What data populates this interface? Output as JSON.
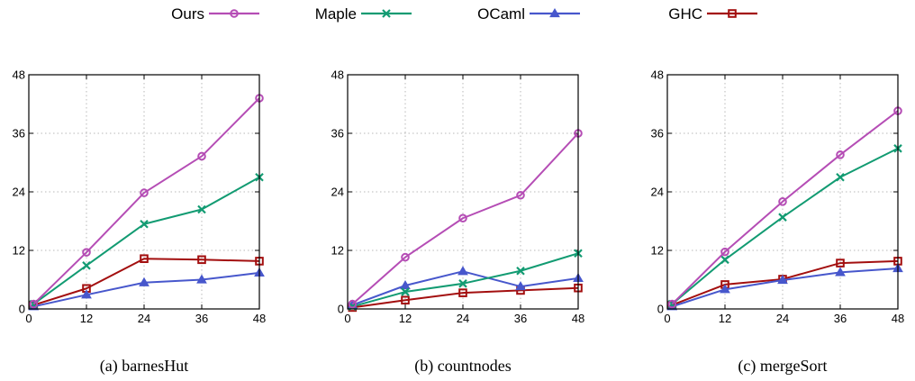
{
  "legend": [
    {
      "name": "Ours",
      "color": "#b54db5",
      "marker": "circle"
    },
    {
      "name": "Maple",
      "color": "#129b72",
      "marker": "x"
    },
    {
      "name": "OCaml",
      "color": "#4757cc",
      "marker": "triangle"
    },
    {
      "name": "GHC",
      "color": "#a30f0f",
      "marker": "square"
    }
  ],
  "chart_data": [
    {
      "type": "line",
      "caption": "(a) barnesHut",
      "x": [
        1,
        12,
        24,
        36,
        48
      ],
      "xticks": [
        0,
        12,
        24,
        36,
        48
      ],
      "yticks": [
        0,
        12,
        24,
        36,
        48
      ],
      "xlim": [
        0,
        48
      ],
      "ylim": [
        0,
        48
      ],
      "grid": true,
      "series": [
        {
          "name": "Ours",
          "values": [
            1,
            11.6,
            23.8,
            31.3,
            43.2
          ]
        },
        {
          "name": "Maple",
          "values": [
            1,
            8.9,
            17.4,
            20.4,
            27
          ]
        },
        {
          "name": "OCaml",
          "values": [
            0.5,
            2.9,
            5.4,
            6,
            7.4
          ]
        },
        {
          "name": "GHC",
          "values": [
            0.8,
            4.2,
            10.3,
            10.1,
            9.8
          ]
        }
      ]
    },
    {
      "type": "line",
      "caption": "(b) countnodes",
      "x": [
        1,
        12,
        24,
        36,
        48
      ],
      "xticks": [
        0,
        12,
        24,
        36,
        48
      ],
      "yticks": [
        0,
        12,
        24,
        36,
        48
      ],
      "xlim": [
        0,
        48
      ],
      "ylim": [
        0,
        48
      ],
      "grid": true,
      "series": [
        {
          "name": "Ours",
          "values": [
            1,
            10.6,
            18.6,
            23.3,
            36
          ]
        },
        {
          "name": "Maple",
          "values": [
            0.5,
            3.5,
            5.2,
            7.8,
            11.4
          ]
        },
        {
          "name": "OCaml",
          "values": [
            0.8,
            4.8,
            7.7,
            4.6,
            6.3
          ]
        },
        {
          "name": "GHC",
          "values": [
            0.3,
            1.8,
            3.3,
            3.8,
            4.3
          ]
        }
      ]
    },
    {
      "type": "line",
      "caption": "(c) mergeSort",
      "x": [
        1,
        12,
        24,
        36,
        48
      ],
      "xticks": [
        0,
        12,
        24,
        36,
        48
      ],
      "yticks": [
        0,
        12,
        24,
        36,
        48
      ],
      "xlim": [
        0,
        48
      ],
      "ylim": [
        0,
        48
      ],
      "grid": true,
      "series": [
        {
          "name": "Ours",
          "values": [
            1,
            11.7,
            22,
            31.6,
            40.6
          ]
        },
        {
          "name": "Maple",
          "values": [
            1,
            10.1,
            18.8,
            27,
            32.9
          ]
        },
        {
          "name": "OCaml",
          "values": [
            0.5,
            4,
            5.9,
            7.5,
            8.3
          ]
        },
        {
          "name": "GHC",
          "values": [
            0.8,
            5,
            6.1,
            9.4,
            9.8
          ]
        }
      ]
    }
  ]
}
